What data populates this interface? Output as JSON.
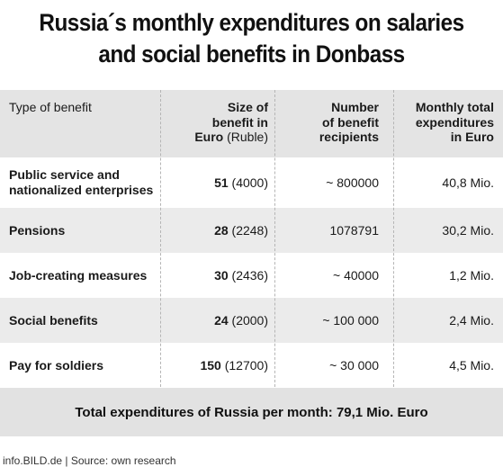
{
  "title_line1": "Russia´s monthly expenditures on salaries",
  "title_line2": "and social benefits in Donbass",
  "header": {
    "col1": "Type of benefit",
    "col2_line1": "Size of",
    "col2_line2": "benefit in",
    "col2_line3a": "Euro",
    "col2_line3b": "(Ruble)",
    "col3_line1": "Number",
    "col3_line2": "of benefit",
    "col3_line3": "recipients",
    "col4_line1": "Monthly total",
    "col4_line2": "expenditures",
    "col4_line3": "in Euro"
  },
  "rows": [
    {
      "type_line1": "Public service and",
      "type_line2": "nationalized enterprises",
      "euro": "51",
      "ruble": "(4000)",
      "recipients": "~ 800000",
      "monthly": "40,8 Mio."
    },
    {
      "type_line1": "Pensions",
      "type_line2": "",
      "euro": "28",
      "ruble": "(2248)",
      "recipients": "1078791",
      "monthly": "30,2 Mio."
    },
    {
      "type_line1": "Job-creating measures",
      "type_line2": "",
      "euro": "30",
      "ruble": "(2436)",
      "recipients": "~ 40000",
      "monthly": "1,2 Mio."
    },
    {
      "type_line1": "Social benefits",
      "type_line2": "",
      "euro": "24",
      "ruble": "(2000)",
      "recipients": "~ 100 000",
      "monthly": "2,4 Mio."
    },
    {
      "type_line1": "Pay for soldiers",
      "type_line2": "",
      "euro": "150",
      "ruble": "(12700)",
      "recipients": "~ 30 000",
      "monthly": "4,5 Mio."
    }
  ],
  "total": "Total expenditures of Russia per month: 79,1 Mio. Euro",
  "source": "info.BILD.de | Source: own research",
  "colors": {
    "header_bg": "#e4e4e4",
    "shaded_row_bg": "#ebebeb",
    "total_bg": "#e2e2e2",
    "text": "#1a1a1a"
  },
  "chart_data": {
    "type": "table",
    "title": "Russia´s monthly expenditures on salaries and social benefits in Donbass",
    "columns": [
      "Type of benefit",
      "Size of benefit in Euro (Ruble)",
      "Number of benefit recipients",
      "Monthly total expenditures in Euro"
    ],
    "rows": [
      [
        "Public service and nationalized enterprises",
        "51 (4000)",
        "~ 800000",
        "40,8 Mio."
      ],
      [
        "Pensions",
        "28 (2248)",
        "1078791",
        "30,2 Mio."
      ],
      [
        "Job-creating measures",
        "30 (2436)",
        "~ 40000",
        "1,2 Mio."
      ],
      [
        "Social benefits",
        "24 (2000)",
        "~ 100 000",
        "2,4 Mio."
      ],
      [
        "Pay for soldiers",
        "150 (12700)",
        "~ 30 000",
        "4,5 Mio."
      ]
    ],
    "total": "Total expenditures of Russia per month: 79,1 Mio. Euro"
  }
}
